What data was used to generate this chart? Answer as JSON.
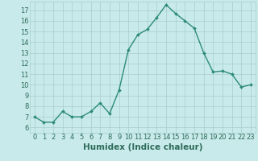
{
  "x": [
    0,
    1,
    2,
    3,
    4,
    5,
    6,
    7,
    8,
    9,
    10,
    11,
    12,
    13,
    14,
    15,
    16,
    17,
    18,
    19,
    20,
    21,
    22,
    23
  ],
  "y": [
    7.0,
    6.5,
    6.5,
    7.5,
    7.0,
    7.0,
    7.5,
    8.3,
    7.3,
    9.5,
    13.3,
    14.7,
    15.2,
    16.3,
    17.5,
    16.7,
    16.0,
    15.3,
    13.0,
    11.2,
    11.3,
    11.0,
    9.8,
    10.0
  ],
  "line_color": "#2e8b7a",
  "marker": "D",
  "marker_size": 2.0,
  "bg_color": "#c8eaea",
  "grid_color": "#a8cdcd",
  "tick_color": "#2e6b5a",
  "label_color": "#2e6b5a",
  "xlabel": "Humidex (Indice chaleur)",
  "ylabel": "",
  "xlim": [
    -0.5,
    23.5
  ],
  "ylim": [
    5.5,
    17.8
  ],
  "yticks": [
    6,
    7,
    8,
    9,
    10,
    11,
    12,
    13,
    14,
    15,
    16,
    17
  ],
  "xticks": [
    0,
    1,
    2,
    3,
    4,
    5,
    6,
    7,
    8,
    9,
    10,
    11,
    12,
    13,
    14,
    15,
    16,
    17,
    18,
    19,
    20,
    21,
    22,
    23
  ],
  "line_width": 1.0,
  "font_size": 6.0,
  "xlabel_fontsize": 7.5,
  "xlabel_bold": true
}
